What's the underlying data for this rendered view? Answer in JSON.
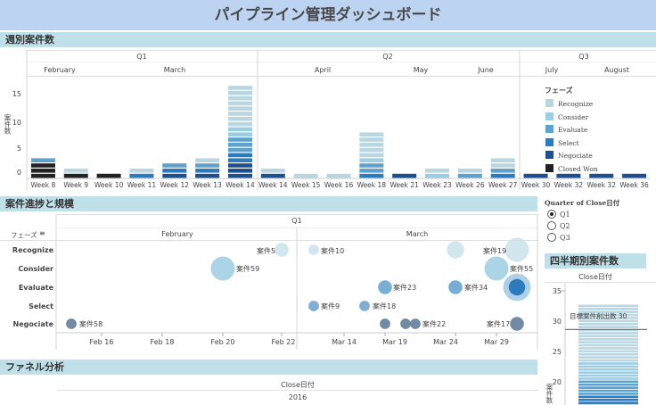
{
  "title": "パイプライン管理ダッシュボード",
  "sections": {
    "weekly": "週別案件数",
    "progress": "案件進捗と規模",
    "funnel": "ファネル分析",
    "quarterly": "四半期別案件数"
  },
  "weekly": {
    "y_axis_label": "案件数",
    "quarters": [
      "Q1",
      "Q2",
      "Q3"
    ],
    "months": [
      "February",
      "March",
      "April",
      "May",
      "June",
      "July",
      "August"
    ],
    "y_ticks": [
      "15",
      "10",
      "5",
      "0"
    ]
  },
  "legend": {
    "title": "フェーズ",
    "items": [
      {
        "label": "Recognize",
        "color": "#b9d6e1"
      },
      {
        "label": "Consider",
        "color": "#9ccde3"
      },
      {
        "label": "Evaluate",
        "color": "#5ea1cd"
      },
      {
        "label": "Select",
        "color": "#2d7bbd"
      },
      {
        "label": "Negociate",
        "color": "#1f4e8c"
      },
      {
        "label": "Closed Won",
        "color": "#222222"
      }
    ]
  },
  "quarter_filter": {
    "title": "Quarter of Close日付",
    "options": [
      "Q1",
      "Q2",
      "Q3"
    ],
    "selected": "Q1"
  },
  "progress": {
    "phase_header": "フェーズ",
    "quarter": "Q1",
    "months": [
      "February",
      "March"
    ],
    "phases": [
      "Recognize",
      "Consider",
      "Evaluate",
      "Select",
      "Negociate"
    ],
    "x_ticks": [
      "Feb 16",
      "Feb 18",
      "Feb 20",
      "Feb 22",
      "Mar 14",
      "Mar 19",
      "Mar 24",
      "Mar 29"
    ],
    "deal_labels": [
      "案件5",
      "案件10",
      "案件19",
      "案件59",
      "案件55",
      "案件23",
      "案件34",
      "案件9",
      "案件18",
      "案件58",
      "案件22",
      "案件17"
    ]
  },
  "funnel": {
    "axis_title": "Close日付",
    "year": "2016"
  },
  "quarterly": {
    "axis_title": "Close日付",
    "y_ticks": [
      "35",
      "30",
      "25",
      "20"
    ],
    "y_label": "案件数",
    "target_label": "目標案件創出数",
    "target_value": "30"
  },
  "chart_data": [
    {
      "type": "bar",
      "title": "週別案件数",
      "ylabel": "案件数",
      "ylim": [
        0,
        18
      ],
      "categories": [
        "Week 8",
        "Week 9",
        "Week 10",
        "Week 11",
        "Week 12",
        "Week 13",
        "Week 14",
        "Week 14",
        "Week 15",
        "Week 16",
        "Week 18",
        "Week 21",
        "Week 23",
        "Week 26",
        "Week 27",
        "Week 30",
        "Week 32",
        "Week 32",
        "Week 36"
      ],
      "series": [
        {
          "name": "Closed Won",
          "values": [
            3,
            1,
            1,
            0,
            0,
            0,
            0,
            0,
            0,
            0,
            0,
            0,
            0,
            0,
            0,
            0,
            0,
            0,
            0
          ]
        },
        {
          "name": "Negociate",
          "values": [
            0,
            0,
            0,
            0,
            1,
            1,
            3,
            1,
            0,
            0,
            0,
            1,
            0,
            0,
            0,
            1,
            1,
            1,
            1
          ]
        },
        {
          "name": "Select",
          "values": [
            0,
            0,
            0,
            1,
            1,
            1,
            2,
            0,
            0,
            0,
            1,
            0,
            0,
            0,
            1,
            0,
            0,
            0,
            0
          ]
        },
        {
          "name": "Evaluate",
          "values": [
            1,
            0,
            0,
            0,
            1,
            1,
            3,
            0,
            0,
            0,
            2,
            0,
            0,
            1,
            1,
            0,
            0,
            0,
            0
          ]
        },
        {
          "name": "Consider",
          "values": [
            0,
            0,
            0,
            0,
            0,
            0,
            2,
            0,
            0,
            0,
            1,
            0,
            1,
            0,
            0,
            0,
            0,
            0,
            0
          ]
        },
        {
          "name": "Recognize",
          "values": [
            0,
            1,
            0,
            1,
            0,
            1,
            8,
            1,
            1,
            1,
            5,
            0,
            1,
            1,
            2,
            0,
            0,
            0,
            0
          ]
        }
      ]
    },
    {
      "type": "scatter",
      "title": "案件進捗と規模",
      "x_ticks": [
        "Feb 16",
        "Feb 18",
        "Feb 20",
        "Feb 22",
        "Mar 14",
        "Mar 19",
        "Mar 24",
        "Mar 29"
      ],
      "points": [
        {
          "label": "案件5",
          "date": "Feb 22",
          "phase": "Recognize",
          "size": 2
        },
        {
          "label": "案件10",
          "date": "Mar 11",
          "phase": "Recognize",
          "size": 1
        },
        {
          "label": "",
          "date": "Mar 24",
          "phase": "Recognize",
          "size": 3
        },
        {
          "label": "案件19",
          "date": "Mar 30",
          "phase": "Recognize",
          "size": 5
        },
        {
          "label": "案件59",
          "date": "Feb 20",
          "phase": "Consider",
          "size": 5
        },
        {
          "label": "案件55",
          "date": "Mar 29",
          "phase": "Consider",
          "size": 5
        },
        {
          "label": "案件23",
          "date": "Mar 19",
          "phase": "Evaluate",
          "size": 2
        },
        {
          "label": "案件34",
          "date": "Mar 24",
          "phase": "Evaluate",
          "size": 2
        },
        {
          "label": "",
          "date": "Mar 30",
          "phase": "Evaluate",
          "size": 6
        },
        {
          "label": "案件9",
          "date": "Mar 11",
          "phase": "Select",
          "size": 1
        },
        {
          "label": "案件18",
          "date": "Mar 16",
          "phase": "Select",
          "size": 1
        },
        {
          "label": "案件58",
          "date": "Feb 14",
          "phase": "Negociate",
          "size": 1
        },
        {
          "label": "",
          "date": "Mar 19",
          "phase": "Negociate",
          "size": 1
        },
        {
          "label": "",
          "date": "Mar 21",
          "phase": "Negociate",
          "size": 1
        },
        {
          "label": "案件22",
          "date": "Mar 22",
          "phase": "Negociate",
          "size": 1
        },
        {
          "label": "案件17",
          "date": "Mar 30",
          "phase": "Negociate",
          "size": 2
        }
      ]
    },
    {
      "type": "bar",
      "title": "四半期別案件数",
      "categories": [
        "Q1"
      ],
      "values": [
        34
      ],
      "ylim": [
        18,
        37
      ],
      "target": 30
    }
  ]
}
